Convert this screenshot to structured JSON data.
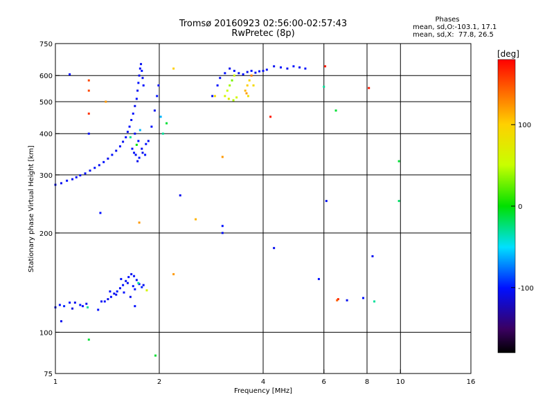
{
  "title": "Tromsø 20160923 02:56:00-02:57:43",
  "subtitle": "RwPretec (8p)",
  "phases_box": {
    "heading": "Phases",
    "line1": "mean, sd,O:-103.1, 17.1",
    "line2": "mean, sd,X:  77.8, 26.5"
  },
  "colorbar": {
    "label": "[deg]",
    "ticks": [
      "100",
      "0",
      "-100"
    ],
    "tick_values": [
      100,
      0,
      -100
    ],
    "range": [
      -180,
      180
    ]
  },
  "chart_data": {
    "type": "scatter",
    "xlabel": "Frequency [MHz]",
    "ylabel": "Stationary phase Virtual Height [km]",
    "x_scale": "log",
    "y_scale": "log",
    "xlim": [
      1,
      16
    ],
    "ylim": [
      75,
      750
    ],
    "x_ticks": [
      1,
      2,
      4,
      6,
      8,
      10,
      16
    ],
    "x_tick_labels": [
      "1",
      "2",
      "4",
      "6",
      "8",
      "10",
      "16"
    ],
    "y_ticks": [
      75,
      100,
      200,
      300,
      400,
      500,
      600,
      750
    ],
    "y_tick_labels": [
      "75",
      "100",
      "200",
      "300",
      "400",
      "500",
      "600",
      "750"
    ],
    "grid": true,
    "x_grid": [
      2,
      4,
      6,
      8,
      10
    ],
    "y_grid": [
      100,
      200,
      300,
      400,
      500,
      600
    ],
    "colorscale": "rainbow, phase in deg",
    "points": [
      [
        1.0,
        119,
        -105
      ],
      [
        1.03,
        121,
        -100
      ],
      [
        1.06,
        120,
        -95
      ],
      [
        1.1,
        123,
        -100
      ],
      [
        1.12,
        118,
        -110
      ],
      [
        1.14,
        123,
        -105
      ],
      [
        1.18,
        121,
        -98
      ],
      [
        1.2,
        120,
        -100
      ],
      [
        1.23,
        122,
        -104
      ],
      [
        1.24,
        119,
        -30
      ],
      [
        1.04,
        108,
        -105
      ],
      [
        1.33,
        117,
        -100
      ],
      [
        1.36,
        124,
        -104
      ],
      [
        1.39,
        124,
        -100
      ],
      [
        1.42,
        126,
        -106
      ],
      [
        1.45,
        128,
        -100
      ],
      [
        1.48,
        131,
        -105
      ],
      [
        1.51,
        133,
        -98
      ],
      [
        1.54,
        136,
        -103
      ],
      [
        1.57,
        139,
        -100
      ],
      [
        1.6,
        143,
        -104
      ],
      [
        1.63,
        147,
        -100
      ],
      [
        1.66,
        150,
        -105
      ],
      [
        1.69,
        148,
        -100
      ],
      [
        1.72,
        144,
        -104
      ],
      [
        1.75,
        140,
        -100
      ],
      [
        1.78,
        137,
        -95
      ],
      [
        1.44,
        133,
        -100
      ],
      [
        1.5,
        130,
        -104
      ],
      [
        1.58,
        132,
        -100
      ],
      [
        1.65,
        128,
        -105
      ],
      [
        1.7,
        135,
        -100
      ],
      [
        1.74,
        141,
        -30
      ],
      [
        1.55,
        145,
        -100
      ],
      [
        1.62,
        141,
        -105
      ],
      [
        1.68,
        138,
        -100
      ],
      [
        1.8,
        139,
        -104
      ],
      [
        1.84,
        134,
        60
      ],
      [
        1.0,
        280,
        -100
      ],
      [
        1.04,
        283,
        -105
      ],
      [
        1.08,
        288,
        -100
      ],
      [
        1.12,
        291,
        -104
      ],
      [
        1.15,
        295,
        -100
      ],
      [
        1.18,
        299,
        -105
      ],
      [
        1.22,
        303,
        -100
      ],
      [
        1.26,
        309,
        -104
      ],
      [
        1.3,
        315,
        -100
      ],
      [
        1.34,
        321,
        -105
      ],
      [
        1.38,
        328,
        -100
      ],
      [
        1.42,
        336,
        -104
      ],
      [
        1.46,
        345,
        -100
      ],
      [
        1.5,
        355,
        -105
      ],
      [
        1.54,
        366,
        -100
      ],
      [
        1.57,
        378,
        -104
      ],
      [
        1.6,
        390,
        -100
      ],
      [
        1.62,
        405,
        -105
      ],
      [
        1.64,
        420,
        -100
      ],
      [
        1.66,
        440,
        -104
      ],
      [
        1.68,
        460,
        -100
      ],
      [
        1.7,
        485,
        -105
      ],
      [
        1.72,
        510,
        -100
      ],
      [
        1.73,
        540,
        -104
      ],
      [
        1.74,
        570,
        -100
      ],
      [
        1.75,
        600,
        -105
      ],
      [
        1.76,
        630,
        -100
      ],
      [
        1.77,
        650,
        -104
      ],
      [
        1.78,
        620,
        -100
      ],
      [
        1.79,
        590,
        -105
      ],
      [
        1.8,
        560,
        -100
      ],
      [
        1.7,
        400,
        -104
      ],
      [
        1.74,
        380,
        -100
      ],
      [
        1.78,
        360,
        -105
      ],
      [
        1.82,
        345,
        -100
      ],
      [
        1.86,
        380,
        -104
      ],
      [
        1.9,
        420,
        -100
      ],
      [
        1.94,
        470,
        -105
      ],
      [
        1.97,
        520,
        -100
      ],
      [
        1.99,
        560,
        -104
      ],
      [
        1.65,
        390,
        -30
      ],
      [
        1.72,
        370,
        0
      ],
      [
        1.76,
        410,
        -60
      ],
      [
        1.69,
        350,
        -100
      ],
      [
        1.73,
        330,
        -105
      ],
      [
        1.67,
        360,
        -100
      ],
      [
        1.71,
        345,
        -104
      ],
      [
        1.75,
        338,
        -100
      ],
      [
        1.79,
        350,
        -105
      ],
      [
        1.83,
        372,
        -100
      ],
      [
        2.05,
        400,
        -30
      ],
      [
        2.1,
        430,
        -10
      ],
      [
        2.02,
        450,
        -60
      ],
      [
        2.85,
        520,
        -105
      ],
      [
        2.95,
        560,
        -100
      ],
      [
        3.0,
        590,
        -104
      ],
      [
        3.1,
        610,
        -100
      ],
      [
        3.2,
        630,
        -105
      ],
      [
        3.3,
        620,
        -100
      ],
      [
        3.4,
        610,
        -104
      ],
      [
        3.5,
        605,
        -100
      ],
      [
        3.6,
        615,
        -105
      ],
      [
        3.7,
        620,
        -100
      ],
      [
        3.8,
        612,
        -104
      ],
      [
        3.9,
        618,
        -100
      ],
      [
        4.0,
        620,
        -105
      ],
      [
        4.1,
        625,
        -100
      ],
      [
        4.3,
        640,
        -104
      ],
      [
        4.5,
        635,
        -100
      ],
      [
        4.7,
        630,
        -105
      ],
      [
        4.9,
        640,
        -100
      ],
      [
        5.1,
        635,
        -104
      ],
      [
        5.3,
        630,
        -100
      ],
      [
        3.1,
        520,
        60
      ],
      [
        3.15,
        540,
        50
      ],
      [
        3.2,
        560,
        40
      ],
      [
        3.25,
        580,
        30
      ],
      [
        3.3,
        600,
        55
      ],
      [
        3.18,
        510,
        70
      ],
      [
        3.28,
        505,
        45
      ],
      [
        3.35,
        515,
        60
      ],
      [
        3.55,
        540,
        110
      ],
      [
        3.6,
        560,
        100
      ],
      [
        3.65,
        580,
        95
      ],
      [
        3.7,
        600,
        130
      ],
      [
        3.62,
        520,
        85
      ],
      [
        3.75,
        560,
        90
      ],
      [
        3.58,
        530,
        120
      ],
      [
        1.7,
        120,
        -100
      ],
      [
        1.35,
        230,
        -100
      ],
      [
        1.25,
        400,
        -104
      ],
      [
        2.3,
        260,
        -105
      ],
      [
        2.2,
        150,
        120
      ],
      [
        3.05,
        210,
        -100
      ],
      [
        3.05,
        200,
        -104
      ],
      [
        4.3,
        180,
        -105
      ],
      [
        5.8,
        145,
        -100
      ],
      [
        6.1,
        250,
        -104
      ],
      [
        6.55,
        125,
        140
      ],
      [
        6.6,
        126,
        160
      ],
      [
        7.0,
        125,
        -105
      ],
      [
        7.8,
        127,
        -100
      ],
      [
        8.3,
        170,
        -104
      ],
      [
        8.4,
        124,
        -30
      ],
      [
        9.9,
        330,
        -10
      ],
      [
        9.9,
        250,
        -20
      ],
      [
        1.95,
        85,
        -10
      ],
      [
        1.25,
        95,
        -10
      ],
      [
        6.0,
        555,
        -30
      ],
      [
        6.5,
        470,
        -10
      ],
      [
        6.05,
        640,
        170
      ],
      [
        8.1,
        550,
        170
      ],
      [
        4.2,
        450,
        170
      ],
      [
        1.25,
        460,
        160
      ],
      [
        1.25,
        540,
        150
      ],
      [
        1.25,
        580,
        150
      ],
      [
        1.1,
        605,
        -100
      ],
      [
        1.4,
        500,
        120
      ],
      [
        2.2,
        630,
        100
      ],
      [
        2.9,
        520,
        90
      ],
      [
        3.05,
        340,
        120
      ],
      [
        2.55,
        220,
        110
      ],
      [
        1.75,
        215,
        120
      ]
    ]
  }
}
